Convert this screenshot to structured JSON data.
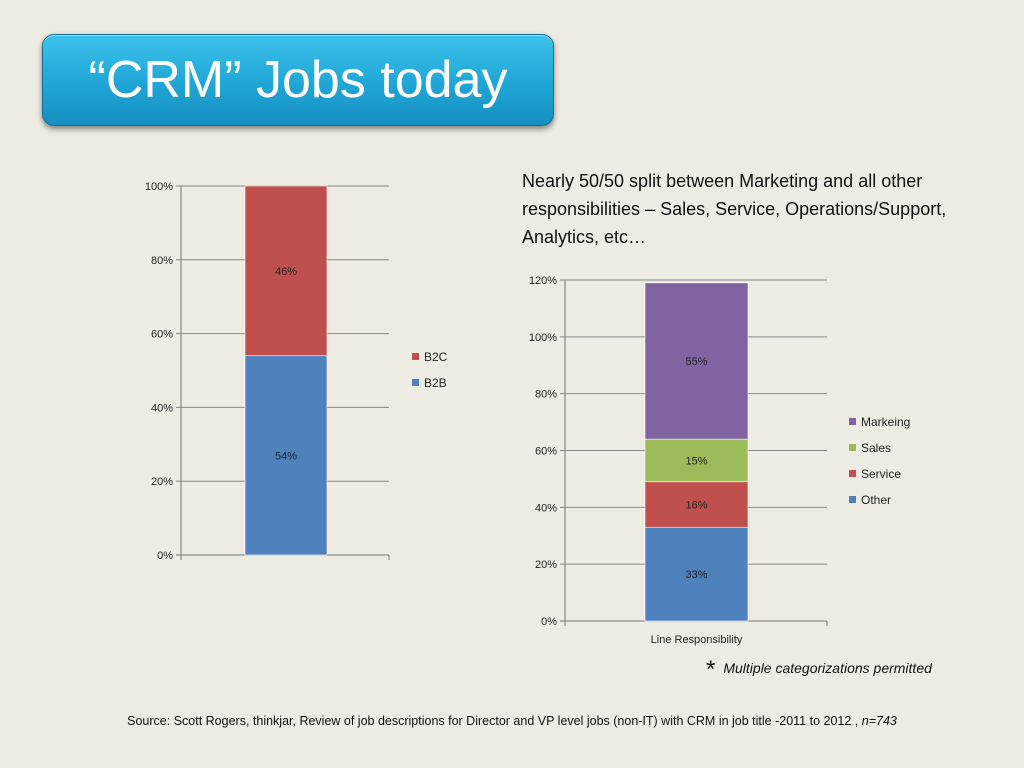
{
  "slide": {
    "title": "“CRM” Jobs today",
    "right_caption": "Nearly 50/50 split between Marketing and all other responsibilities – Sales, Service, Operations/Support, Analytics, etc…",
    "footnote_star": "*",
    "footnote_text": "Multiple categorizations permitted",
    "source_text": "Source: Scott Rogers, thinkjar, Review of job descriptions for Director and VP level jobs (non-IT) with CRM in job title -2011 to 2012 ,",
    "source_n": "n=743"
  },
  "chart_data": [
    {
      "type": "bar",
      "stacked": true,
      "categories": [
        ""
      ],
      "series": [
        {
          "name": "B2B",
          "values": [
            54
          ],
          "label": "54%",
          "color": "#4f81bd"
        },
        {
          "name": "B2C",
          "values": [
            46
          ],
          "label": "46%",
          "color": "#c0504d"
        }
      ],
      "legend_order": [
        "B2C",
        "B2B"
      ],
      "legend_position": "right",
      "ylim": [
        0,
        100
      ],
      "yticks": [
        "0%",
        "20%",
        "40%",
        "60%",
        "80%",
        "100%"
      ],
      "grid": true
    },
    {
      "type": "bar",
      "stacked": true,
      "categories": [
        "Line Responsibility"
      ],
      "series": [
        {
          "name": "Other",
          "values": [
            33
          ],
          "label": "33%",
          "color": "#4f81bd"
        },
        {
          "name": "Service",
          "values": [
            16
          ],
          "label": "16%",
          "color": "#c0504d"
        },
        {
          "name": "Sales",
          "values": [
            15
          ],
          "label": "15%",
          "color": "#9bbb59"
        },
        {
          "name": "Markeing",
          "values": [
            55
          ],
          "label": "55%",
          "color": "#8064a2"
        }
      ],
      "legend_order": [
        "Markeing",
        "Sales",
        "Service",
        "Other"
      ],
      "legend_position": "right",
      "ylim": [
        0,
        120
      ],
      "yticks": [
        "0%",
        "20%",
        "40%",
        "60%",
        "80%",
        "100%",
        "120%"
      ],
      "grid": true
    }
  ]
}
